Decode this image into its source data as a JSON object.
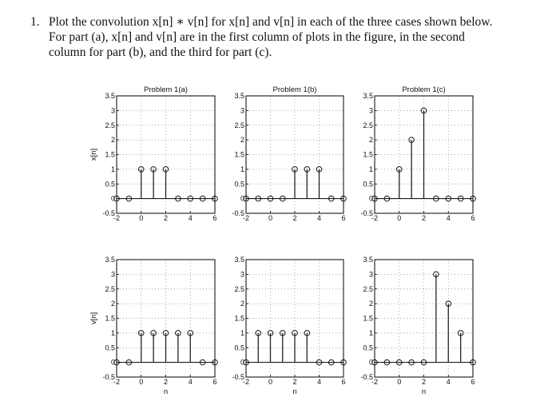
{
  "problem": {
    "number": "1.",
    "line1": "Plot the convolution x[n] ∗ v[n] for x[n] and v[n] in each of the three cases shown below.",
    "line2": "For part (a), x[n] and v[n] are in the first column of plots in the figure, in the second",
    "line3": "column for part (b), and the third for part (c)."
  },
  "chart_data": [
    {
      "type": "stem",
      "title": "Problem 1(a)",
      "ylabel": "x[n]",
      "xlabel": "",
      "x": [
        -2,
        -1,
        0,
        1,
        2,
        3,
        4,
        5,
        6
      ],
      "values": [
        0,
        0,
        1,
        1,
        1,
        0,
        0,
        0,
        0
      ],
      "xlim": [
        -2,
        6
      ],
      "ylim": [
        -0.5,
        3.5
      ],
      "xticks": [
        -2,
        0,
        2,
        4,
        6
      ],
      "yticks": [
        -0.5,
        0,
        0.5,
        1,
        1.5,
        2,
        2.5,
        3,
        3.5
      ],
      "grid": true
    },
    {
      "type": "stem",
      "title": "Problem 1(b)",
      "ylabel": "",
      "xlabel": "",
      "x": [
        -2,
        -1,
        0,
        1,
        2,
        3,
        4,
        5,
        6
      ],
      "values": [
        0,
        0,
        0,
        0,
        1,
        1,
        1,
        0,
        0
      ],
      "xlim": [
        -2,
        6
      ],
      "ylim": [
        -0.5,
        3.5
      ],
      "xticks": [
        -2,
        0,
        2,
        4,
        6
      ],
      "yticks": [
        -0.5,
        0,
        0.5,
        1,
        1.5,
        2,
        2.5,
        3,
        3.5
      ],
      "grid": true
    },
    {
      "type": "stem",
      "title": "Problem 1(c)",
      "ylabel": "",
      "xlabel": "",
      "x": [
        -2,
        -1,
        0,
        1,
        2,
        3,
        4,
        5,
        6
      ],
      "values": [
        0,
        0,
        1,
        2,
        3,
        0,
        0,
        0,
        0
      ],
      "xlim": [
        -2,
        6
      ],
      "ylim": [
        -0.5,
        3.5
      ],
      "xticks": [
        -2,
        0,
        2,
        4,
        6
      ],
      "yticks": [
        -0.5,
        0,
        0.5,
        1,
        1.5,
        2,
        2.5,
        3,
        3.5
      ],
      "grid": true
    },
    {
      "type": "stem",
      "title": "",
      "ylabel": "v[n]",
      "xlabel": "n",
      "x": [
        -2,
        -1,
        0,
        1,
        2,
        3,
        4,
        5,
        6
      ],
      "values": [
        0,
        0,
        1,
        1,
        1,
        1,
        1,
        0,
        0
      ],
      "xlim": [
        -2,
        6
      ],
      "ylim": [
        -0.5,
        3.5
      ],
      "xticks": [
        -2,
        0,
        2,
        4,
        6
      ],
      "yticks": [
        -0.5,
        0,
        0.5,
        1,
        1.5,
        2,
        2.5,
        3,
        3.5
      ],
      "grid": true
    },
    {
      "type": "stem",
      "title": "",
      "ylabel": "",
      "xlabel": "n",
      "x": [
        -2,
        -1,
        0,
        1,
        2,
        3,
        4,
        5,
        6
      ],
      "values": [
        0,
        1,
        1,
        1,
        1,
        1,
        0,
        0,
        0
      ],
      "xlim": [
        -2,
        6
      ],
      "ylim": [
        -0.5,
        3.5
      ],
      "xticks": [
        -2,
        0,
        2,
        4,
        6
      ],
      "yticks": [
        -0.5,
        0,
        0.5,
        1,
        1.5,
        2,
        2.5,
        3,
        3.5
      ],
      "grid": true
    },
    {
      "type": "stem",
      "title": "",
      "ylabel": "",
      "xlabel": "n",
      "x": [
        -2,
        -1,
        0,
        1,
        2,
        3,
        4,
        5,
        6
      ],
      "values": [
        0,
        0,
        0,
        0,
        0,
        3,
        2,
        1,
        0
      ],
      "xlim": [
        -2,
        6
      ],
      "ylim": [
        -0.5,
        3.5
      ],
      "xticks": [
        -2,
        0,
        2,
        4,
        6
      ],
      "yticks": [
        -0.5,
        0,
        0.5,
        1,
        1.5,
        2,
        2.5,
        3,
        3.5
      ],
      "grid": true
    }
  ]
}
